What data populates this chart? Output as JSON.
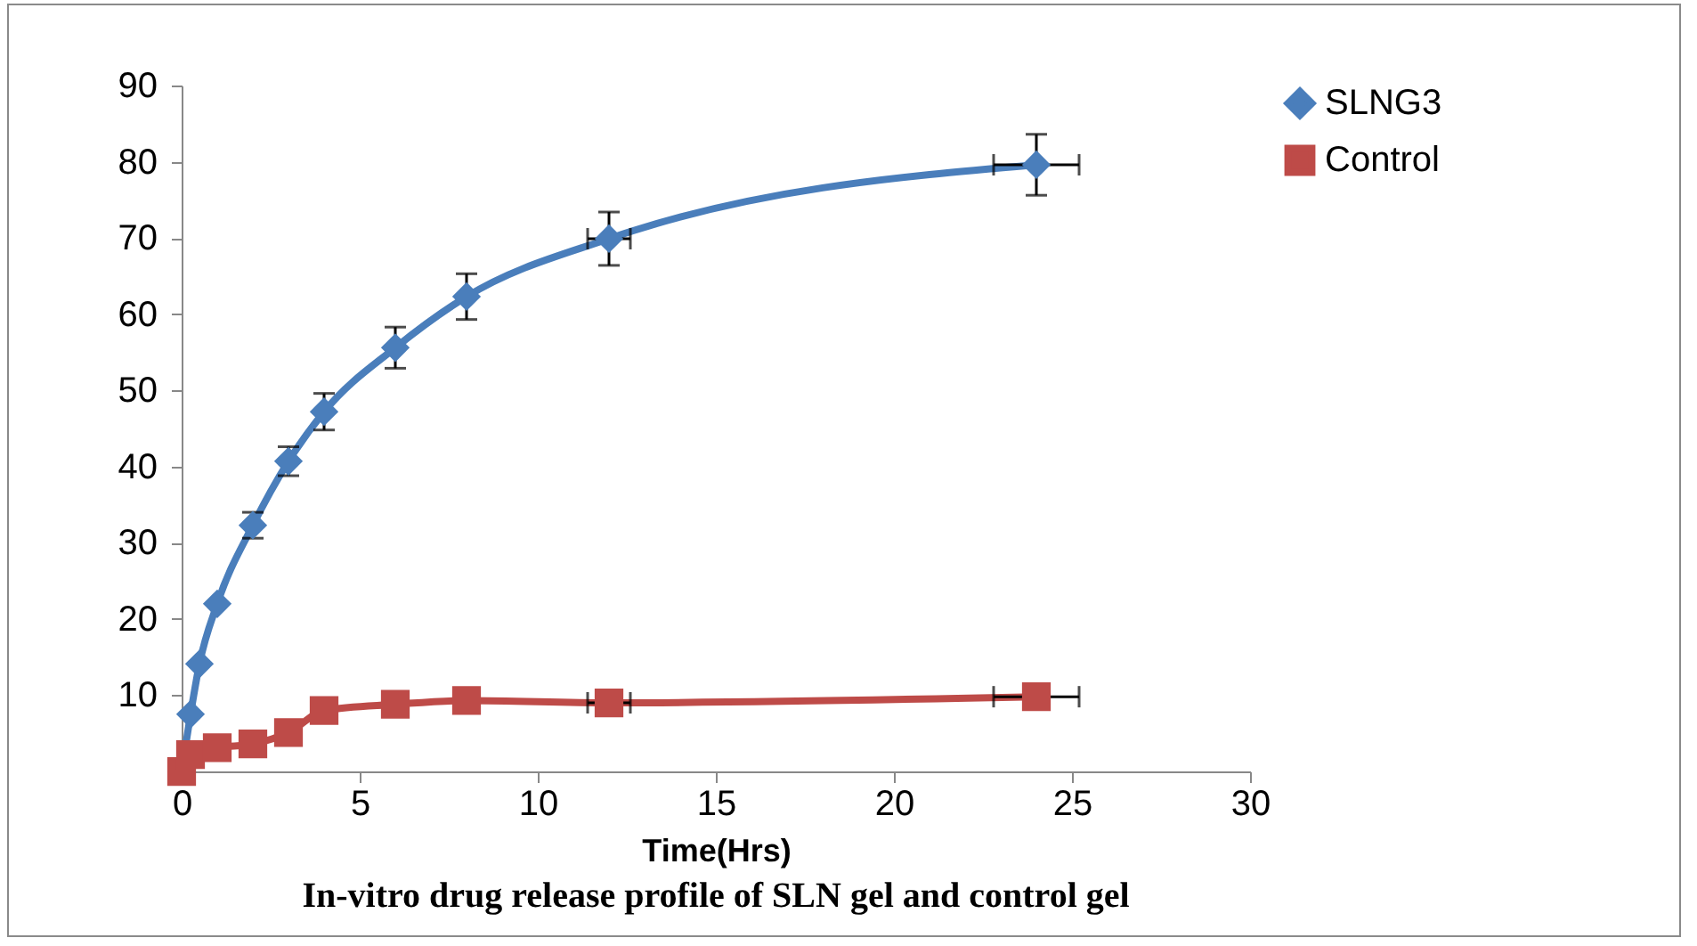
{
  "chart_data": {
    "type": "line",
    "title": "In-vitro drug release profile of SLN gel and control gel",
    "xlabel": "Time(Hrs)",
    "x": [
      0,
      0.25,
      0.5,
      1,
      2,
      3,
      4,
      6,
      8,
      12,
      24
    ],
    "series": [
      {
        "name": "SLNG3",
        "color": "#4a7ebb",
        "marker": "diamond",
        "values": [
          0,
          7.5,
          14.1,
          22.0,
          32.3,
          40.7,
          47.2,
          55.6,
          62.3,
          69.9,
          79.6
        ],
        "errors": [
          null,
          null,
          null,
          null,
          1.7,
          1.9,
          2.4,
          2.7,
          3.0,
          3.5,
          4.0
        ],
        "xerrors": [
          null,
          null,
          null,
          null,
          null,
          null,
          null,
          null,
          null,
          0.6,
          1.2
        ]
      },
      {
        "name": "Control",
        "color": "#be4b48",
        "marker": "square",
        "values": [
          0,
          2.2,
          null,
          3.1,
          3.6,
          5.1,
          8.0,
          8.8,
          9.3,
          9.0,
          9.8
        ],
        "xerrors": [
          null,
          null,
          null,
          null,
          null,
          null,
          null,
          null,
          null,
          0.6,
          1.2
        ]
      }
    ],
    "xlim": [
      0,
      30
    ],
    "xticks": [
      0,
      5,
      10,
      15,
      20,
      25,
      30
    ],
    "ylim": [
      0,
      90
    ],
    "yticks": [
      {
        "value": 0,
        "label": null
      },
      10,
      20,
      30,
      40,
      50,
      60,
      70,
      80,
      90
    ],
    "legend": "right",
    "line_style": "solid"
  }
}
